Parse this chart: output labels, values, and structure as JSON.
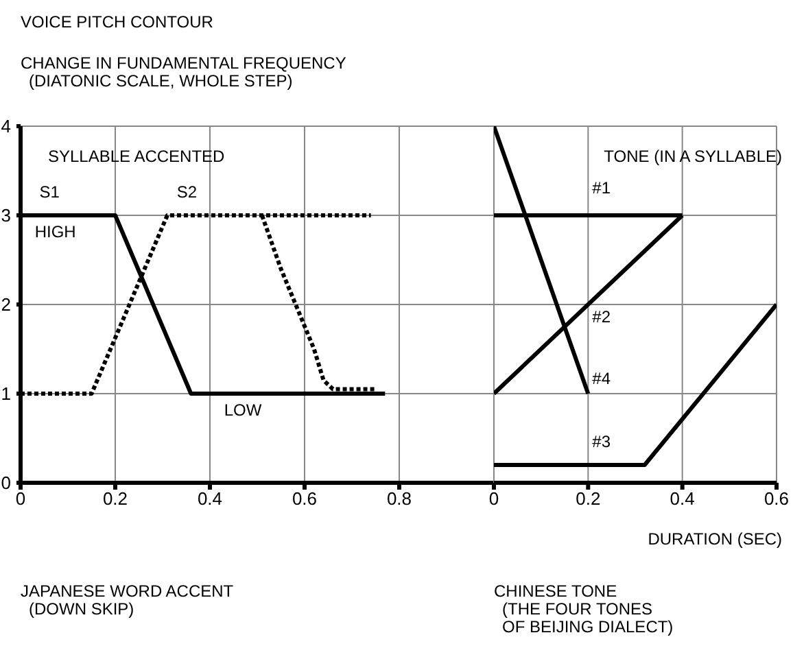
{
  "chart_data": [
    {
      "type": "line",
      "title": "VOICE PITCH CONTOUR",
      "ylabel": "CHANGE IN FUNDAMENTAL FREQUENCY\n(DIATONIC SCALE, WHOLE STEP)",
      "xlim": [
        0,
        1
      ],
      "xticks": [
        0,
        0.2,
        0.4,
        0.6,
        0.8
      ],
      "ylim": [
        0,
        4
      ],
      "yticks": [
        0,
        1,
        2,
        3,
        4
      ],
      "grid": true,
      "marker": "none",
      "annotations": [
        "SYLLABLE ACCENTED",
        "S1",
        "S2",
        "HIGH",
        "LOW",
        "JAPANESE WORD ACCENT\n(DOWN SKIP)"
      ],
      "series": [
        {
          "x": [
            0,
            0.2,
            0.36,
            0.77
          ],
          "values": [
            3,
            3,
            1,
            1
          ],
          "color": "#000000",
          "line_style": "solid"
        },
        {
          "x": [
            0,
            0.15,
            0.31,
            0.74
          ],
          "values": [
            1,
            1,
            3,
            3
          ],
          "color": "#000000",
          "line_style": "dashed"
        },
        {
          "x": [
            0.51,
            0.55,
            0.62,
            0.64,
            0.66,
            0.75
          ],
          "values": [
            3,
            2.4,
            1.5,
            1.15,
            1.05,
            1.05
          ],
          "color": "#000000",
          "line_style": "dashed"
        }
      ]
    },
    {
      "type": "line",
      "xlabel": "DURATION (SEC)",
      "xlim": [
        0,
        0.6
      ],
      "xticks": [
        0,
        0.2,
        0.4,
        0.6
      ],
      "ylim": [
        0,
        4
      ],
      "yticks": [
        0,
        1,
        2,
        3,
        4
      ],
      "tick_labels": "x",
      "grid": true,
      "marker": "none",
      "annotations": [
        "TONE (IN A SYLLABLE)",
        "CHINESE TONE\n(THE FOUR TONES\nOF BEIJING DIALECT)"
      ],
      "series": [
        {
          "name": "#1",
          "x": [
            0,
            0.4
          ],
          "values": [
            3,
            3
          ],
          "color": "#000000",
          "line_style": "solid"
        },
        {
          "name": "#2",
          "x": [
            0,
            0.4
          ],
          "values": [
            1,
            3
          ],
          "color": "#000000",
          "line_style": "solid"
        },
        {
          "name": "#3",
          "x": [
            0,
            0.32,
            0.6
          ],
          "values": [
            0.2,
            0.2,
            2
          ],
          "color": "#000000",
          "line_style": "solid"
        },
        {
          "name": "#4",
          "x": [
            0,
            0.2
          ],
          "values": [
            4,
            1
          ],
          "color": "#000000",
          "line_style": "solid"
        }
      ]
    }
  ]
}
